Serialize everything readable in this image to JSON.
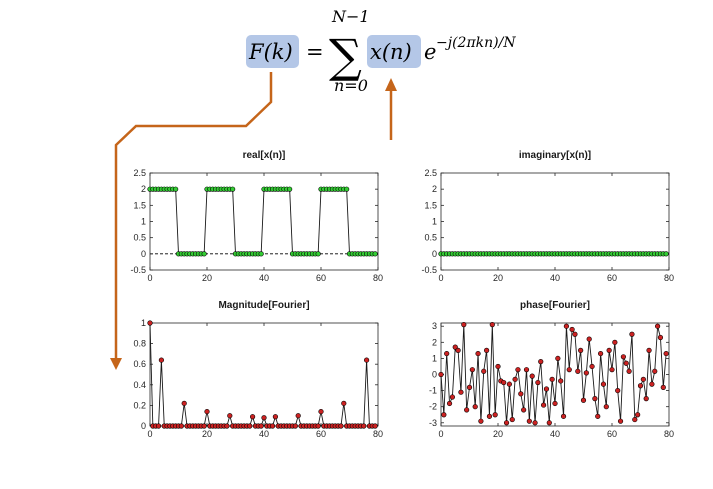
{
  "formula": {
    "lhs": "F(k)",
    "equals": "=",
    "sum_symbol": "∑",
    "sum_upper": "N−1",
    "sum_lower": "n=0",
    "x_term": "x(n)",
    "exp_base": "e",
    "exp_power": "−j(2πkn)/N",
    "highlight_color": "#b4c7e7",
    "arrow_color": "#c5651a"
  },
  "chart_data": [
    {
      "type": "line",
      "title": "real[x(n)]",
      "xlim": [
        0,
        80
      ],
      "ylim": [
        -0.5,
        2.5
      ],
      "xticks": [
        "0",
        "20",
        "40",
        "60",
        "80"
      ],
      "yticks": [
        "-0.5",
        "0",
        "0.5",
        "1",
        "1.5",
        "2",
        "2.5"
      ],
      "marker_color": "#33cc33",
      "reference_line": 0,
      "x": [
        0,
        1,
        2,
        3,
        4,
        5,
        6,
        7,
        8,
        9,
        10,
        11,
        12,
        13,
        14,
        15,
        16,
        17,
        18,
        19,
        20,
        21,
        22,
        23,
        24,
        25,
        26,
        27,
        28,
        29,
        30,
        31,
        32,
        33,
        34,
        35,
        36,
        37,
        38,
        39,
        40,
        41,
        42,
        43,
        44,
        45,
        46,
        47,
        48,
        49,
        50,
        51,
        52,
        53,
        54,
        55,
        56,
        57,
        58,
        59,
        60,
        61,
        62,
        63,
        64,
        65,
        66,
        67,
        68,
        69,
        70,
        71,
        72,
        73,
        74,
        75,
        76,
        77,
        78,
        79
      ],
      "values": [
        2,
        2,
        2,
        2,
        2,
        2,
        2,
        2,
        2,
        2,
        0,
        0,
        0,
        0,
        0,
        0,
        0,
        0,
        0,
        0,
        2,
        2,
        2,
        2,
        2,
        2,
        2,
        2,
        2,
        2,
        0,
        0,
        0,
        0,
        0,
        0,
        0,
        0,
        0,
        0,
        2,
        2,
        2,
        2,
        2,
        2,
        2,
        2,
        2,
        2,
        0,
        0,
        0,
        0,
        0,
        0,
        0,
        0,
        0,
        0,
        2,
        2,
        2,
        2,
        2,
        2,
        2,
        2,
        2,
        2,
        0,
        0,
        0,
        0,
        0,
        0,
        0,
        0,
        0,
        0
      ]
    },
    {
      "type": "line",
      "title": "imaginary[x(n)]",
      "xlim": [
        0,
        80
      ],
      "ylim": [
        -0.5,
        2.5
      ],
      "xticks": [
        "0",
        "20",
        "40",
        "60",
        "80"
      ],
      "yticks": [
        "-0.5",
        "0",
        "0.5",
        "1",
        "1.5",
        "2",
        "2.5"
      ],
      "marker_color": "#33cc33",
      "x": [
        0,
        1,
        2,
        3,
        4,
        5,
        6,
        7,
        8,
        9,
        10,
        11,
        12,
        13,
        14,
        15,
        16,
        17,
        18,
        19,
        20,
        21,
        22,
        23,
        24,
        25,
        26,
        27,
        28,
        29,
        30,
        31,
        32,
        33,
        34,
        35,
        36,
        37,
        38,
        39,
        40,
        41,
        42,
        43,
        44,
        45,
        46,
        47,
        48,
        49,
        50,
        51,
        52,
        53,
        54,
        55,
        56,
        57,
        58,
        59,
        60,
        61,
        62,
        63,
        64,
        65,
        66,
        67,
        68,
        69,
        70,
        71,
        72,
        73,
        74,
        75,
        76,
        77,
        78,
        79
      ],
      "values": [
        0,
        0,
        0,
        0,
        0,
        0,
        0,
        0,
        0,
        0,
        0,
        0,
        0,
        0,
        0,
        0,
        0,
        0,
        0,
        0,
        0,
        0,
        0,
        0,
        0,
        0,
        0,
        0,
        0,
        0,
        0,
        0,
        0,
        0,
        0,
        0,
        0,
        0,
        0,
        0,
        0,
        0,
        0,
        0,
        0,
        0,
        0,
        0,
        0,
        0,
        0,
        0,
        0,
        0,
        0,
        0,
        0,
        0,
        0,
        0,
        0,
        0,
        0,
        0,
        0,
        0,
        0,
        0,
        0,
        0,
        0,
        0,
        0,
        0,
        0,
        0,
        0,
        0,
        0,
        0
      ]
    },
    {
      "type": "line",
      "title": "Magnitude[Fourier]",
      "xlim": [
        0,
        80
      ],
      "ylim": [
        0,
        1
      ],
      "xticks": [
        "0",
        "20",
        "40",
        "60",
        "80"
      ],
      "yticks": [
        "0",
        "0.2",
        "0.4",
        "0.6",
        "0.8",
        "1"
      ],
      "marker_color": "#cc2222",
      "x": [
        0,
        1,
        2,
        3,
        4,
        5,
        6,
        7,
        8,
        9,
        10,
        11,
        12,
        13,
        14,
        15,
        16,
        17,
        18,
        19,
        20,
        21,
        22,
        23,
        24,
        25,
        26,
        27,
        28,
        29,
        30,
        31,
        32,
        33,
        34,
        35,
        36,
        37,
        38,
        39,
        40,
        41,
        42,
        43,
        44,
        45,
        46,
        47,
        48,
        49,
        50,
        51,
        52,
        53,
        54,
        55,
        56,
        57,
        58,
        59,
        60,
        61,
        62,
        63,
        64,
        65,
        66,
        67,
        68,
        69,
        70,
        71,
        72,
        73,
        74,
        75,
        76,
        77,
        78,
        79
      ],
      "values": [
        1,
        0,
        0,
        0,
        0.64,
        0,
        0,
        0,
        0,
        0,
        0,
        0,
        0.22,
        0,
        0,
        0,
        0,
        0,
        0,
        0,
        0.14,
        0,
        0,
        0,
        0,
        0,
        0,
        0,
        0.1,
        0,
        0,
        0,
        0,
        0,
        0,
        0,
        0.09,
        0,
        0,
        0,
        0.08,
        0,
        0,
        0,
        0.09,
        0,
        0,
        0,
        0,
        0,
        0,
        0,
        0.1,
        0,
        0,
        0,
        0,
        0,
        0,
        0,
        0.14,
        0,
        0,
        0,
        0,
        0,
        0,
        0,
        0.22,
        0,
        0,
        0,
        0,
        0,
        0,
        0,
        0.64,
        0,
        0,
        0
      ]
    },
    {
      "type": "line",
      "title": "phase[Fourier]",
      "xlim": [
        0,
        80
      ],
      "ylim": [
        -3.2,
        3.2
      ],
      "xticks": [
        "0",
        "20",
        "40",
        "60",
        "80"
      ],
      "yticks": [
        "-3",
        "-2",
        "-1",
        "0",
        "1",
        "2",
        "3"
      ],
      "marker_color": "#cc2222",
      "x": [
        0,
        1,
        2,
        3,
        4,
        5,
        6,
        7,
        8,
        9,
        10,
        11,
        12,
        13,
        14,
        15,
        16,
        17,
        18,
        19,
        20,
        21,
        22,
        23,
        24,
        25,
        26,
        27,
        28,
        29,
        30,
        31,
        32,
        33,
        34,
        35,
        36,
        37,
        38,
        39,
        40,
        41,
        42,
        43,
        44,
        45,
        46,
        47,
        48,
        49,
        50,
        51,
        52,
        53,
        54,
        55,
        56,
        57,
        58,
        59,
        60,
        61,
        62,
        63,
        64,
        65,
        66,
        67,
        68,
        69,
        70,
        71,
        72,
        73,
        74,
        75,
        76,
        77,
        78,
        79
      ],
      "values": [
        0,
        -2.5,
        1.3,
        -1.8,
        -1.4,
        1.7,
        1.5,
        -1.1,
        3.1,
        -2.2,
        -0.8,
        0.3,
        -2.0,
        1.3,
        -2.9,
        0.2,
        1.5,
        -2.6,
        3.1,
        -2.5,
        0.5,
        -0.4,
        -0.5,
        -3.0,
        -0.6,
        -2.8,
        -0.3,
        0.3,
        -1.2,
        -2.2,
        0.3,
        -2.9,
        -0.1,
        -3.0,
        -0.5,
        0.8,
        -1.9,
        -0.9,
        -3.0,
        -0.3,
        -1.8,
        1.0,
        -0.4,
        -2.6,
        3.0,
        0.3,
        2.8,
        2.5,
        0.2,
        1.5,
        -1.6,
        0.1,
        2.2,
        0.5,
        -1.5,
        -2.6,
        1.3,
        -0.6,
        -2.0,
        1.5,
        0.3,
        2.0,
        -1.0,
        -2.9,
        1.1,
        0.7,
        0.2,
        2.5,
        -2.8,
        -2.5,
        -0.7,
        -0.3,
        -1.5,
        1.5,
        -0.6,
        0.2,
        3.0,
        2.3,
        -0.8,
        1.3
      ]
    }
  ]
}
